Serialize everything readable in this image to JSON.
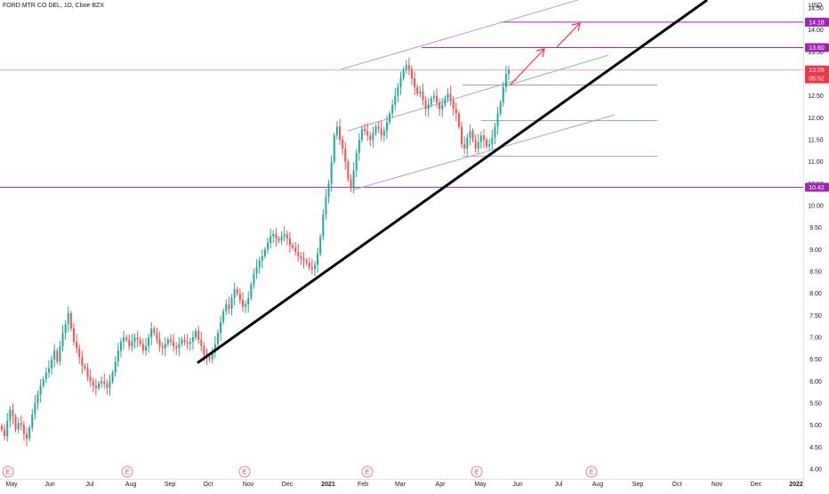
{
  "header": {
    "title": "FORD MTR CO DEL, 1D, Cboe BZX",
    "currency": "USD"
  },
  "chart_data": {
    "type": "candlestick",
    "ylim": [
      3.9,
      14.4
    ],
    "y_ticks": [
      "4.00",
      "4.50",
      "5.00",
      "5.50",
      "6.00",
      "6.50",
      "7.00",
      "7.50",
      "8.00",
      "8.50",
      "9.00",
      "9.50",
      "10.00",
      "10.50",
      "11.00",
      "11.50",
      "12.00",
      "12.50",
      "13.00",
      "13.50",
      "14.00",
      "14.50"
    ],
    "x_ticks": [
      {
        "label": "May",
        "bold": false
      },
      {
        "label": "Jun",
        "bold": false
      },
      {
        "label": "Jul",
        "bold": false
      },
      {
        "label": "Aug",
        "bold": false
      },
      {
        "label": "Sep",
        "bold": false
      },
      {
        "label": "Oct",
        "bold": false
      },
      {
        "label": "Nov",
        "bold": false
      },
      {
        "label": "Dec",
        "bold": false
      },
      {
        "label": "2021",
        "bold": true
      },
      {
        "label": "Feb",
        "bold": false
      },
      {
        "label": "Mar",
        "bold": false
      },
      {
        "label": "Apr",
        "bold": false
      },
      {
        "label": "May",
        "bold": false
      },
      {
        "label": "Jun",
        "bold": false
      },
      {
        "label": "Jul",
        "bold": false
      },
      {
        "label": "Aug",
        "bold": false
      },
      {
        "label": "Sep",
        "bold": false
      },
      {
        "label": "Oct",
        "bold": false
      },
      {
        "label": "Nov",
        "bold": false
      },
      {
        "label": "Dec",
        "bold": false
      },
      {
        "label": "2022",
        "bold": true
      }
    ],
    "closes": [
      4.9,
      4.75,
      5.1,
      5.35,
      5.2,
      4.9,
      5.05,
      5.0,
      4.8,
      4.7,
      4.95,
      5.25,
      5.5,
      5.7,
      5.9,
      6.05,
      6.2,
      6.3,
      6.5,
      6.7,
      6.45,
      6.8,
      7.1,
      7.3,
      7.55,
      7.2,
      6.9,
      6.75,
      6.55,
      6.35,
      6.3,
      6.1,
      6.0,
      5.9,
      5.85,
      5.95,
      6.0,
      5.95,
      5.85,
      6.0,
      6.2,
      6.45,
      6.7,
      6.9,
      7.0,
      6.95,
      6.8,
      6.9,
      7.0,
      6.95,
      6.85,
      6.7,
      6.8,
      7.0,
      7.2,
      7.1,
      6.95,
      6.8,
      6.75,
      6.85,
      6.95,
      6.9,
      6.8,
      6.75,
      6.85,
      6.95,
      6.9,
      6.85,
      6.9,
      7.0,
      7.15,
      6.95,
      6.8,
      6.6,
      6.55,
      6.5,
      6.65,
      6.85,
      7.1,
      7.35,
      7.6,
      7.75,
      7.65,
      7.9,
      8.1,
      8.0,
      7.85,
      7.7,
      7.75,
      7.9,
      8.2,
      8.45,
      8.6,
      8.75,
      8.85,
      9.0,
      9.15,
      9.3,
      9.35,
      9.25,
      9.2,
      9.3,
      9.35,
      9.25,
      9.1,
      9.05,
      8.95,
      8.85,
      8.8,
      8.75,
      8.7,
      8.6,
      8.55,
      8.65,
      8.9,
      9.3,
      9.8,
      10.2,
      10.5,
      11.0,
      11.6,
      11.8,
      11.5,
      11.3,
      11.0,
      10.6,
      10.4,
      10.8,
      11.2,
      11.5,
      11.75,
      11.7,
      11.6,
      11.5,
      11.65,
      11.8,
      11.75,
      11.6,
      11.7,
      11.9,
      12.1,
      12.3,
      12.5,
      12.7,
      12.9,
      13.1,
      13.2,
      13.1,
      12.9,
      12.7,
      12.55,
      12.6,
      12.4,
      12.2,
      12.3,
      12.45,
      12.5,
      12.35,
      12.2,
      12.3,
      12.45,
      12.55,
      12.4,
      12.2,
      12.1,
      11.8,
      11.4,
      11.3,
      11.55,
      11.7,
      11.5,
      11.3,
      11.45,
      11.6,
      11.5,
      11.35,
      11.4,
      11.55,
      11.8,
      12.1,
      12.35,
      12.7,
      13.0,
      13.09
    ],
    "reference_lines": [
      {
        "label": "14.18",
        "value": 14.18,
        "color": "#9c27b0",
        "kind": "purple"
      },
      {
        "label": "13.60",
        "value": 13.6,
        "color": "#9c27b0",
        "kind": "purple"
      },
      {
        "label": "13.09",
        "value": 13.09,
        "color": "#f23645",
        "kind": "current"
      },
      {
        "label": "10.42",
        "value": 10.42,
        "color": "#9c27b0",
        "kind": "purple"
      }
    ],
    "current_price_countdown": "05:52",
    "earnings_marker_label": "E",
    "earnings_marker_count": 6,
    "trend_line": {
      "start_value": 6.42,
      "end_value": 14.5
    }
  },
  "colors": {
    "up": "#26a69a",
    "down": "#ef5350",
    "axis_text": "#131722",
    "trend_line": "#000000",
    "channel_purple": "#b39ddb",
    "channel_green": "#81c784"
  }
}
